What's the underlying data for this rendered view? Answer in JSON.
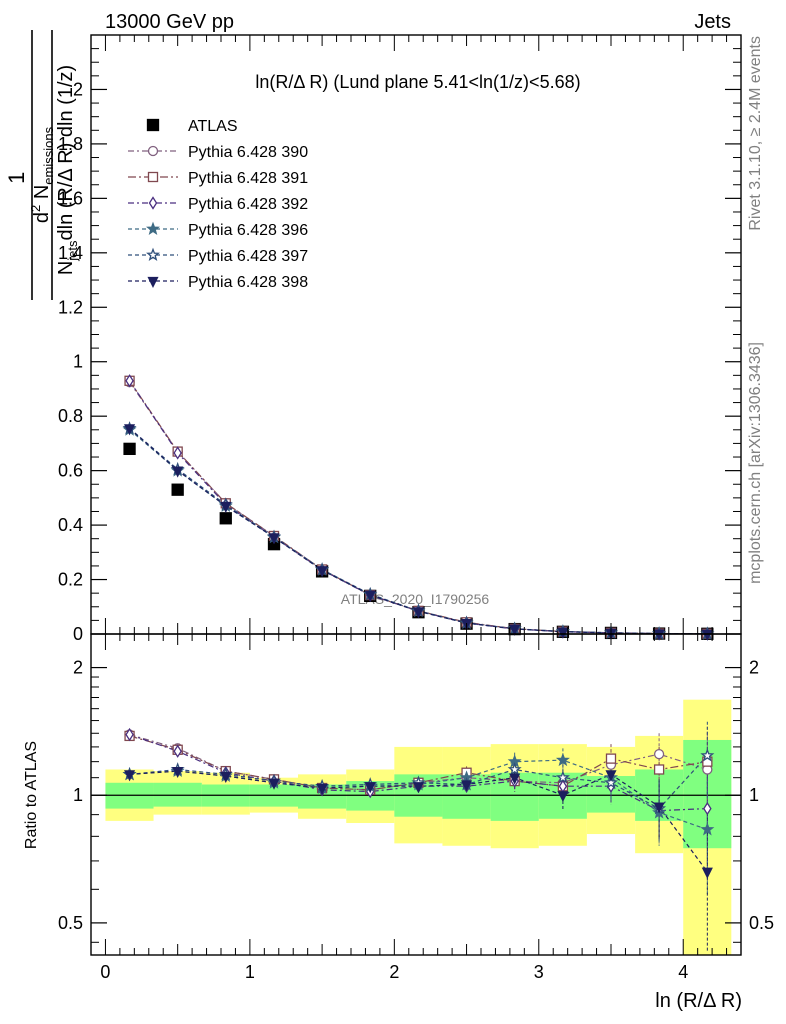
{
  "header": {
    "left": "13000 GeV pp",
    "right": "Jets"
  },
  "side_labels": {
    "rivet": "Rivet 3.1.10, ≥ 2.4M events",
    "mcplots": "mcplots.cern.ch [arXiv:1306.3436]"
  },
  "colors": {
    "yellow_band": "#ffff80",
    "green_band": "#80ff80",
    "data": "#000000"
  },
  "chart_data": [
    {
      "type": "scatter",
      "title": "ln(R/Δ R) (Lund plane 5.41<ln(1/z)<5.68)",
      "xlabel": "ln (R/Δ R)",
      "ylabel": "1/N_jets dln(R/ΔR) dln(1/z) d²N_emissions",
      "watermark": "ATLAS_2020_I1790256",
      "xlim": [
        -0.1,
        4.4
      ],
      "ylim": [
        0,
        2.2
      ],
      "yticks": [
        0,
        0.2,
        0.4,
        0.6,
        0.8,
        1,
        1.2,
        1.4,
        1.6,
        1.8,
        2
      ],
      "ytick_labels": [
        "0",
        "0.2",
        "0.4",
        "0.6",
        "0.8",
        "1",
        "1.2",
        "1.4",
        "1.6",
        "1.8",
        "2"
      ],
      "legend_position": "top-left",
      "x": [
        0.167,
        0.5,
        0.833,
        1.167,
        1.5,
        1.833,
        2.167,
        2.5,
        2.833,
        3.167,
        3.5,
        3.833,
        4.167
      ],
      "series": [
        {
          "name": "ATLAS",
          "color": "#000000",
          "marker": "square-filled",
          "dash": "none",
          "values": [
            0.68,
            0.53,
            0.425,
            0.33,
            0.23,
            0.14,
            0.08,
            0.038,
            0.018,
            0.008,
            0.004,
            0.0015,
            0.0008
          ]
        },
        {
          "name": "Pythia 6.428 390",
          "color": "#80607f",
          "marker": "circle-open",
          "dash": "6,3,2,3",
          "values": [
            0.925,
            0.67,
            0.48,
            0.36,
            0.237,
            0.143,
            0.085,
            0.042,
            0.019,
            0.009,
            0.0045,
            0.002,
            0.001
          ]
        },
        {
          "name": "Pythia 6.428 391",
          "color": "#80484f",
          "marker": "square-open",
          "dash": "8,3,2,3",
          "values": [
            0.93,
            0.67,
            0.48,
            0.36,
            0.237,
            0.143,
            0.085,
            0.043,
            0.019,
            0.009,
            0.0045,
            0.002,
            0.001
          ]
        },
        {
          "name": "Pythia 6.428 392",
          "color": "#4a2f80",
          "marker": "diamond-open",
          "dash": "6,3,2,3",
          "values": [
            0.93,
            0.665,
            0.475,
            0.355,
            0.235,
            0.142,
            0.084,
            0.04,
            0.018,
            0.0085,
            0.004,
            0.0015,
            0.0008
          ]
        },
        {
          "name": "Pythia 6.428 396",
          "color": "#3e6b84",
          "marker": "star-filled",
          "dash": "4,3",
          "values": [
            0.75,
            0.6,
            0.47,
            0.355,
            0.236,
            0.145,
            0.084,
            0.04,
            0.019,
            0.009,
            0.0045,
            0.0014,
            0.0007
          ]
        },
        {
          "name": "Pythia 6.428 397",
          "color": "#2f4f7a",
          "marker": "star-open",
          "dash": "4,3",
          "values": [
            0.755,
            0.605,
            0.475,
            0.357,
            0.237,
            0.146,
            0.085,
            0.041,
            0.019,
            0.009,
            0.0045,
            0.0014,
            0.0008
          ]
        },
        {
          "name": "Pythia 6.428 398",
          "color": "#1c1f5e",
          "marker": "triangle-down-filled",
          "dash": "4,3",
          "values": [
            0.755,
            0.6,
            0.47,
            0.355,
            0.234,
            0.144,
            0.083,
            0.04,
            0.019,
            0.008,
            0.004,
            0.0013,
            0.0005
          ]
        }
      ]
    },
    {
      "type": "scatter",
      "xlabel": "ln (R/Δ R)",
      "ylabel": "Ratio to ATLAS",
      "scale": "log",
      "xlim": [
        -0.1,
        4.4
      ],
      "ylim": [
        0.42,
        2.4
      ],
      "xticks": [
        0,
        1,
        2,
        3,
        4
      ],
      "xtick_labels": [
        "0",
        "1",
        "2",
        "3",
        "4"
      ],
      "yticks": [
        0.5,
        1,
        2
      ],
      "ytick_labels": [
        "0.5",
        "1",
        "2"
      ],
      "x": [
        0.167,
        0.5,
        0.833,
        1.167,
        1.5,
        1.833,
        2.167,
        2.5,
        2.833,
        3.167,
        3.5,
        3.833,
        4.167
      ],
      "bin_edges": [
        0,
        0.333,
        0.667,
        1.0,
        1.333,
        1.667,
        2.0,
        2.333,
        2.667,
        3.0,
        3.333,
        3.667,
        4.0,
        4.333
      ],
      "band_outer": [
        [
          0.87,
          1.15
        ],
        [
          0.9,
          1.14
        ],
        [
          0.9,
          1.13
        ],
        [
          0.91,
          1.1
        ],
        [
          0.88,
          1.12
        ],
        [
          0.86,
          1.15
        ],
        [
          0.77,
          1.3
        ],
        [
          0.76,
          1.3
        ],
        [
          0.75,
          1.32
        ],
        [
          0.76,
          1.32
        ],
        [
          0.81,
          1.3
        ],
        [
          0.73,
          1.38
        ],
        [
          0.39,
          1.68
        ]
      ],
      "band_inner": [
        [
          0.93,
          1.07
        ],
        [
          0.94,
          1.07
        ],
        [
          0.94,
          1.06
        ],
        [
          0.94,
          1.06
        ],
        [
          0.93,
          1.06
        ],
        [
          0.92,
          1.08
        ],
        [
          0.89,
          1.12
        ],
        [
          0.88,
          1.12
        ],
        [
          0.87,
          1.13
        ],
        [
          0.88,
          1.13
        ],
        [
          0.91,
          1.11
        ],
        [
          0.87,
          1.15
        ],
        [
          0.75,
          1.35
        ]
      ],
      "series": [
        {
          "name": "Pythia 6.428 390",
          "values": [
            1.39,
            1.29,
            1.14,
            1.09,
            1.04,
            1.03,
            1.07,
            1.1,
            1.08,
            1.07,
            1.18,
            1.25,
            1.15
          ]
        },
        {
          "name": "Pythia 6.428 391",
          "values": [
            1.38,
            1.28,
            1.14,
            1.09,
            1.04,
            1.03,
            1.07,
            1.13,
            1.08,
            1.05,
            1.22,
            1.15,
            1.2
          ]
        },
        {
          "name": "Pythia 6.428 392",
          "values": [
            1.39,
            1.27,
            1.13,
            1.08,
            1.03,
            1.02,
            1.05,
            1.05,
            1.08,
            1.05,
            1.05,
            0.92,
            0.93
          ]
        },
        {
          "name": "Pythia 6.428 396",
          "values": [
            1.12,
            1.14,
            1.11,
            1.07,
            1.04,
            1.05,
            1.06,
            1.1,
            1.2,
            1.21,
            1.1,
            0.91,
            0.83
          ]
        },
        {
          "name": "Pythia 6.428 397",
          "values": [
            1.12,
            1.15,
            1.12,
            1.08,
            1.05,
            1.06,
            1.07,
            1.06,
            1.15,
            1.1,
            1.07,
            0.93,
            1.24
          ]
        },
        {
          "name": "Pythia 6.428 398",
          "values": [
            1.12,
            1.14,
            1.11,
            1.07,
            1.04,
            1.05,
            1.05,
            1.06,
            1.1,
            1.0,
            1.12,
            0.94,
            0.66
          ]
        }
      ],
      "error_half_widths": [
        0.02,
        0.02,
        0.02,
        0.02,
        0.02,
        0.03,
        0.03,
        0.04,
        0.06,
        0.08,
        0.1,
        0.15,
        0.25
      ]
    }
  ]
}
